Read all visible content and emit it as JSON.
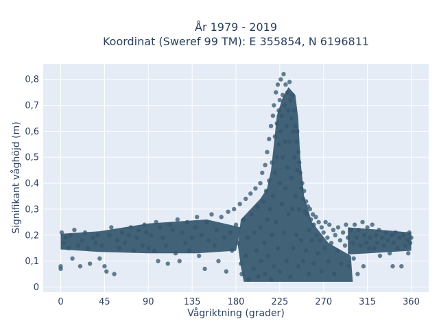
{
  "chart_data": {
    "type": "scatter",
    "title_line1": "År 1979 - 2019",
    "title_line2": "Koordinat (Sweref 99 TM): E 355854, N 6196811",
    "xlabel": "Vågriktning (grader)",
    "ylabel": "Signifikant våghöjd (m)",
    "xlim": [
      -18,
      378
    ],
    "ylim": [
      -0.02,
      0.86
    ],
    "x_ticks": [
      0,
      45,
      90,
      135,
      180,
      225,
      270,
      315,
      360
    ],
    "x_tick_labels": [
      "0",
      "45",
      "90",
      "135",
      "180",
      "225",
      "270",
      "315",
      "360"
    ],
    "y_ticks": [
      0,
      0.1,
      0.2,
      0.3,
      0.4,
      0.5,
      0.6,
      0.7,
      0.8
    ],
    "y_tick_labels": [
      "0",
      "0,1",
      "0,2",
      "0,3",
      "0,4",
      "0,5",
      "0,6",
      "0,7",
      "0,8"
    ],
    "grid": true,
    "legend": "none",
    "marker_color": "#34566c",
    "plot_bg": "#e5ecf6",
    "series": [
      {
        "points": [
          [
            0,
            0.08
          ],
          [
            0,
            0.07
          ],
          [
            1,
            0.21
          ],
          [
            3,
            0.17
          ],
          [
            5,
            0.19
          ],
          [
            8,
            0.15
          ],
          [
            10,
            0.2
          ],
          [
            12,
            0.11
          ],
          [
            14,
            0.22
          ],
          [
            18,
            0.16
          ],
          [
            20,
            0.08
          ],
          [
            22,
            0.18
          ],
          [
            25,
            0.21
          ],
          [
            28,
            0.15
          ],
          [
            30,
            0.09
          ],
          [
            33,
            0.19
          ],
          [
            36,
            0.17
          ],
          [
            38,
            0.2
          ],
          [
            40,
            0.11
          ],
          [
            42,
            0.16
          ],
          [
            45,
            0.08
          ],
          [
            47,
            0.06
          ],
          [
            50,
            0.2
          ],
          [
            52,
            0.23
          ],
          [
            55,
            0.05
          ],
          [
            58,
            0.18
          ],
          [
            60,
            0.15
          ],
          [
            63,
            0.21
          ],
          [
            66,
            0.17
          ],
          [
            70,
            0.2
          ],
          [
            72,
            0.23
          ],
          [
            75,
            0.14
          ],
          [
            78,
            0.19
          ],
          [
            80,
            0.22
          ],
          [
            84,
            0.16
          ],
          [
            86,
            0.24
          ],
          [
            88,
            0.21
          ],
          [
            90,
            0.15
          ],
          [
            93,
            0.2
          ],
          [
            96,
            0.14
          ],
          [
            98,
            0.25
          ],
          [
            100,
            0.1
          ],
          [
            102,
            0.23
          ],
          [
            105,
            0.19
          ],
          [
            108,
            0.16
          ],
          [
            110,
            0.09
          ],
          [
            112,
            0.24
          ],
          [
            115,
            0.22
          ],
          [
            118,
            0.13
          ],
          [
            120,
            0.26
          ],
          [
            122,
            0.1
          ],
          [
            125,
            0.21
          ],
          [
            128,
            0.17
          ],
          [
            130,
            0.25
          ],
          [
            132,
            0.14
          ],
          [
            135,
            0.19
          ],
          [
            138,
            0.23
          ],
          [
            140,
            0.27
          ],
          [
            142,
            0.12
          ],
          [
            145,
            0.2
          ],
          [
            148,
            0.07
          ],
          [
            150,
            0.25
          ],
          [
            152,
            0.18
          ],
          [
            155,
            0.28
          ],
          [
            158,
            0.16
          ],
          [
            160,
            0.22
          ],
          [
            162,
            0.1
          ],
          [
            165,
            0.27
          ],
          [
            168,
            0.19
          ],
          [
            170,
            0.06
          ],
          [
            172,
            0.29
          ],
          [
            174,
            0.21
          ],
          [
            176,
            0.14
          ],
          [
            178,
            0.3
          ],
          [
            180,
            0.24
          ],
          [
            182,
            0.17
          ],
          [
            184,
            0.32
          ],
          [
            185,
            0.09
          ],
          [
            186,
            0.05
          ],
          [
            188,
            0.26
          ],
          [
            190,
            0.34
          ],
          [
            190,
            0.12
          ],
          [
            192,
            0.19
          ],
          [
            193,
            0.03
          ],
          [
            195,
            0.36
          ],
          [
            196,
            0.28
          ],
          [
            198,
            0.07
          ],
          [
            199,
            0.21
          ],
          [
            200,
            0.38
          ],
          [
            201,
            0.14
          ],
          [
            202,
            0.31
          ],
          [
            203,
            0.04
          ],
          [
            205,
            0.4
          ],
          [
            205,
            0.23
          ],
          [
            206,
            0.1
          ],
          [
            207,
            0.44
          ],
          [
            208,
            0.33
          ],
          [
            209,
            0.17
          ],
          [
            210,
            0.47
          ],
          [
            210,
            0.05
          ],
          [
            211,
            0.37
          ],
          [
            212,
            0.52
          ],
          [
            212,
            0.26
          ],
          [
            213,
            0.12
          ],
          [
            214,
            0.57
          ],
          [
            214,
            0.41
          ],
          [
            215,
            0.3
          ],
          [
            216,
            0.62
          ],
          [
            216,
            0.03
          ],
          [
            217,
            0.48
          ],
          [
            217,
            0.2
          ],
          [
            218,
            0.66
          ],
          [
            218,
            0.35
          ],
          [
            219,
            0.7
          ],
          [
            219,
            0.08
          ],
          [
            220,
            0.58
          ],
          [
            220,
            0.44
          ],
          [
            221,
            0.75
          ],
          [
            221,
            0.25
          ],
          [
            222,
            0.63
          ],
          [
            222,
            0.5
          ],
          [
            223,
            0.78
          ],
          [
            223,
            0.15
          ],
          [
            224,
            0.68
          ],
          [
            224,
            0.55
          ],
          [
            225,
            0.72
          ],
          [
            225,
            0.4
          ],
          [
            225,
            0.06
          ],
          [
            226,
            0.8
          ],
          [
            226,
            0.6
          ],
          [
            227,
            0.66
          ],
          [
            227,
            0.32
          ],
          [
            228,
            0.74
          ],
          [
            228,
            0.5
          ],
          [
            229,
            0.82
          ],
          [
            229,
            0.21
          ],
          [
            230,
            0.7
          ],
          [
            230,
            0.56
          ],
          [
            231,
            0.78
          ],
          [
            231,
            0.38
          ],
          [
            232,
            0.62
          ],
          [
            232,
            0.1
          ],
          [
            233,
            0.75
          ],
          [
            233,
            0.46
          ],
          [
            234,
            0.68
          ],
          [
            234,
            0.28
          ],
          [
            235,
            0.79
          ],
          [
            235,
            0.56
          ],
          [
            236,
            0.72
          ],
          [
            236,
            0.04
          ],
          [
            237,
            0.65
          ],
          [
            237,
            0.42
          ],
          [
            238,
            0.74
          ],
          [
            238,
            0.3
          ],
          [
            239,
            0.6
          ],
          [
            239,
            0.15
          ],
          [
            240,
            0.68
          ],
          [
            240,
            0.5
          ],
          [
            241,
            0.62
          ],
          [
            241,
            0.35
          ],
          [
            242,
            0.56
          ],
          [
            242,
            0.2
          ],
          [
            243,
            0.6
          ],
          [
            243,
            0.45
          ],
          [
            244,
            0.52
          ],
          [
            244,
            0.08
          ],
          [
            245,
            0.48
          ],
          [
            245,
            0.3
          ],
          [
            246,
            0.44
          ],
          [
            247,
            0.38
          ],
          [
            247,
            0.18
          ],
          [
            248,
            0.4
          ],
          [
            249,
            0.34
          ],
          [
            249,
            0.1
          ],
          [
            250,
            0.37
          ],
          [
            251,
            0.29
          ],
          [
            252,
            0.33
          ],
          [
            252,
            0.14
          ],
          [
            253,
            0.28
          ],
          [
            254,
            0.31
          ],
          [
            255,
            0.22
          ],
          [
            255,
            0.05
          ],
          [
            256,
            0.3
          ],
          [
            257,
            0.26
          ],
          [
            258,
            0.18
          ],
          [
            259,
            0.28
          ],
          [
            260,
            0.24
          ],
          [
            260,
            0.09
          ],
          [
            262,
            0.27
          ],
          [
            263,
            0.2
          ],
          [
            264,
            0.13
          ],
          [
            265,
            0.25
          ],
          [
            266,
            0.18
          ],
          [
            268,
            0.23
          ],
          [
            268,
            0.06
          ],
          [
            270,
            0.21
          ],
          [
            271,
            0.15
          ],
          [
            272,
            0.25
          ],
          [
            274,
            0.19
          ],
          [
            275,
            0.1
          ],
          [
            276,
            0.24
          ],
          [
            278,
            0.17
          ],
          [
            280,
            0.22
          ],
          [
            281,
            0.05
          ],
          [
            282,
            0.2
          ],
          [
            284,
            0.14
          ],
          [
            285,
            0.23
          ],
          [
            287,
            0.18
          ],
          [
            288,
            0.09
          ],
          [
            290,
            0.21
          ],
          [
            292,
            0.16
          ],
          [
            293,
            0.24
          ],
          [
            295,
            0.19
          ],
          [
            296,
            0.08
          ],
          [
            298,
            0.22
          ],
          [
            300,
            0.17
          ],
          [
            301,
            0.11
          ],
          [
            302,
            0.24
          ],
          [
            304,
            0.19
          ],
          [
            305,
            0.05
          ],
          [
            306,
            0.22
          ],
          [
            308,
            0.16
          ],
          [
            310,
            0.25
          ],
          [
            311,
            0.08
          ],
          [
            312,
            0.2
          ],
          [
            314,
            0.17
          ],
          [
            315,
            0.23
          ],
          [
            317,
            0.15
          ],
          [
            318,
            0.19
          ],
          [
            320,
            0.24
          ],
          [
            322,
            0.15
          ],
          [
            324,
            0.2
          ],
          [
            325,
            0.17
          ],
          [
            327,
            0.22
          ],
          [
            328,
            0.12
          ],
          [
            330,
            0.19
          ],
          [
            332,
            0.16
          ],
          [
            334,
            0.21
          ],
          [
            336,
            0.18
          ],
          [
            338,
            0.13
          ],
          [
            340,
            0.2
          ],
          [
            341,
            0.08
          ],
          [
            342,
            0.17
          ],
          [
            344,
            0.21
          ],
          [
            346,
            0.15
          ],
          [
            348,
            0.19
          ],
          [
            350,
            0.08
          ],
          [
            352,
            0.2
          ],
          [
            354,
            0.16
          ],
          [
            356,
            0.18
          ],
          [
            357,
            0.13
          ],
          [
            358,
            0.21
          ],
          [
            359,
            0.17
          ],
          [
            360,
            0.19
          ]
        ]
      }
    ]
  }
}
